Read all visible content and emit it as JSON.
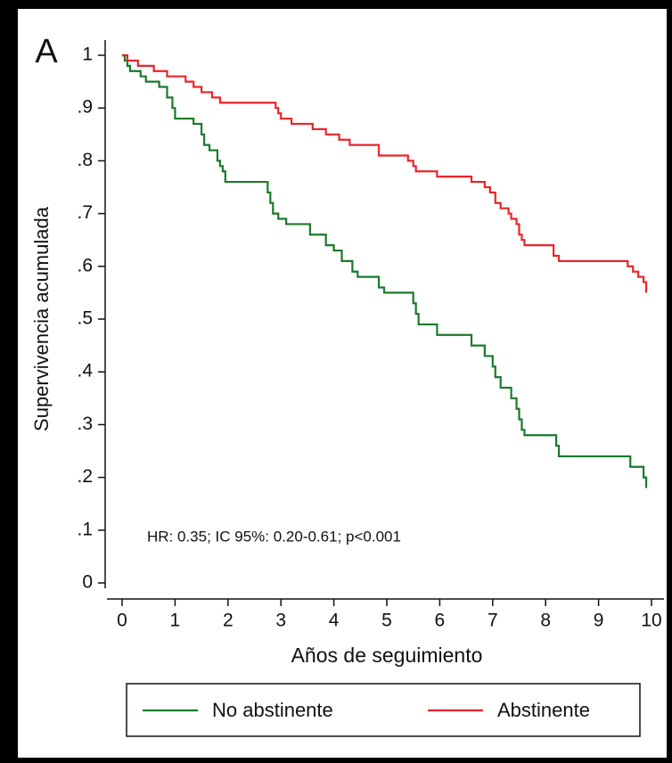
{
  "chart_data": {
    "type": "step",
    "panel_label": "A",
    "xlabel": "Años de seguimiento",
    "ylabel": "Supervivencia acumulada",
    "annotation": "HR: 0.35; IC 95%: 0.20-0.61; p<0.001",
    "xlim": [
      0,
      10
    ],
    "ylim": [
      0,
      1
    ],
    "xticks": [
      0,
      1,
      2,
      3,
      4,
      5,
      6,
      7,
      8,
      9,
      10
    ],
    "yticks": [
      0,
      {
        "value": 0.1,
        "label": ".1"
      },
      {
        "value": 0.2,
        "label": ".2"
      },
      {
        "value": 0.3,
        "label": ".3"
      },
      {
        "value": 0.4,
        "label": ".4"
      },
      {
        "value": 0.5,
        "label": ".5"
      },
      {
        "value": 0.6,
        "label": ".6"
      },
      {
        "value": 0.7,
        "label": ".7"
      },
      {
        "value": 0.8,
        "label": ".8"
      },
      {
        "value": 0.9,
        "label": ".9"
      },
      1
    ],
    "legend": "bottom",
    "series": [
      {
        "name": "No abstinente",
        "color": "#1a7a2a",
        "x": [
          0,
          0.05,
          0.1,
          0.15,
          0.35,
          0.45,
          0.7,
          0.85,
          0.95,
          1.0,
          1.35,
          1.5,
          1.55,
          1.65,
          1.8,
          1.85,
          1.9,
          1.95,
          2.75,
          2.8,
          2.85,
          2.95,
          3.1,
          3.55,
          3.85,
          4.0,
          4.15,
          4.35,
          4.45,
          4.85,
          4.95,
          5.5,
          5.55,
          5.6,
          5.95,
          6.6,
          6.85,
          7.0,
          7.05,
          7.15,
          7.35,
          7.45,
          7.5,
          7.55,
          7.6,
          8.2,
          8.25,
          9.6,
          9.85,
          9.9
        ],
        "values": [
          1,
          0.99,
          0.98,
          0.97,
          0.96,
          0.95,
          0.94,
          0.92,
          0.9,
          0.88,
          0.87,
          0.85,
          0.83,
          0.82,
          0.8,
          0.79,
          0.78,
          0.76,
          0.74,
          0.72,
          0.7,
          0.69,
          0.68,
          0.66,
          0.64,
          0.63,
          0.61,
          0.59,
          0.58,
          0.56,
          0.55,
          0.53,
          0.51,
          0.49,
          0.47,
          0.45,
          0.43,
          0.41,
          0.39,
          0.37,
          0.35,
          0.33,
          0.31,
          0.29,
          0.28,
          0.26,
          0.24,
          0.22,
          0.2,
          0.18
        ]
      },
      {
        "name": "Abstinente",
        "color": "#e8262a",
        "x": [
          0,
          0.1,
          0.3,
          0.6,
          0.85,
          1.2,
          1.35,
          1.5,
          1.7,
          1.85,
          2.9,
          2.95,
          3.0,
          3.2,
          3.6,
          3.85,
          4.1,
          4.3,
          4.85,
          5.4,
          5.5,
          5.55,
          5.95,
          6.6,
          6.85,
          6.95,
          7.05,
          7.15,
          7.3,
          7.35,
          7.45,
          7.5,
          7.55,
          7.6,
          8.15,
          8.25,
          9.55,
          9.65,
          9.75,
          9.85,
          9.9
        ],
        "values": [
          1,
          0.99,
          0.98,
          0.97,
          0.96,
          0.95,
          0.94,
          0.93,
          0.92,
          0.91,
          0.9,
          0.89,
          0.88,
          0.87,
          0.86,
          0.85,
          0.84,
          0.83,
          0.81,
          0.8,
          0.79,
          0.78,
          0.77,
          0.76,
          0.75,
          0.74,
          0.72,
          0.71,
          0.7,
          0.69,
          0.68,
          0.66,
          0.65,
          0.64,
          0.62,
          0.61,
          0.6,
          0.59,
          0.58,
          0.57,
          0.55
        ]
      }
    ]
  }
}
